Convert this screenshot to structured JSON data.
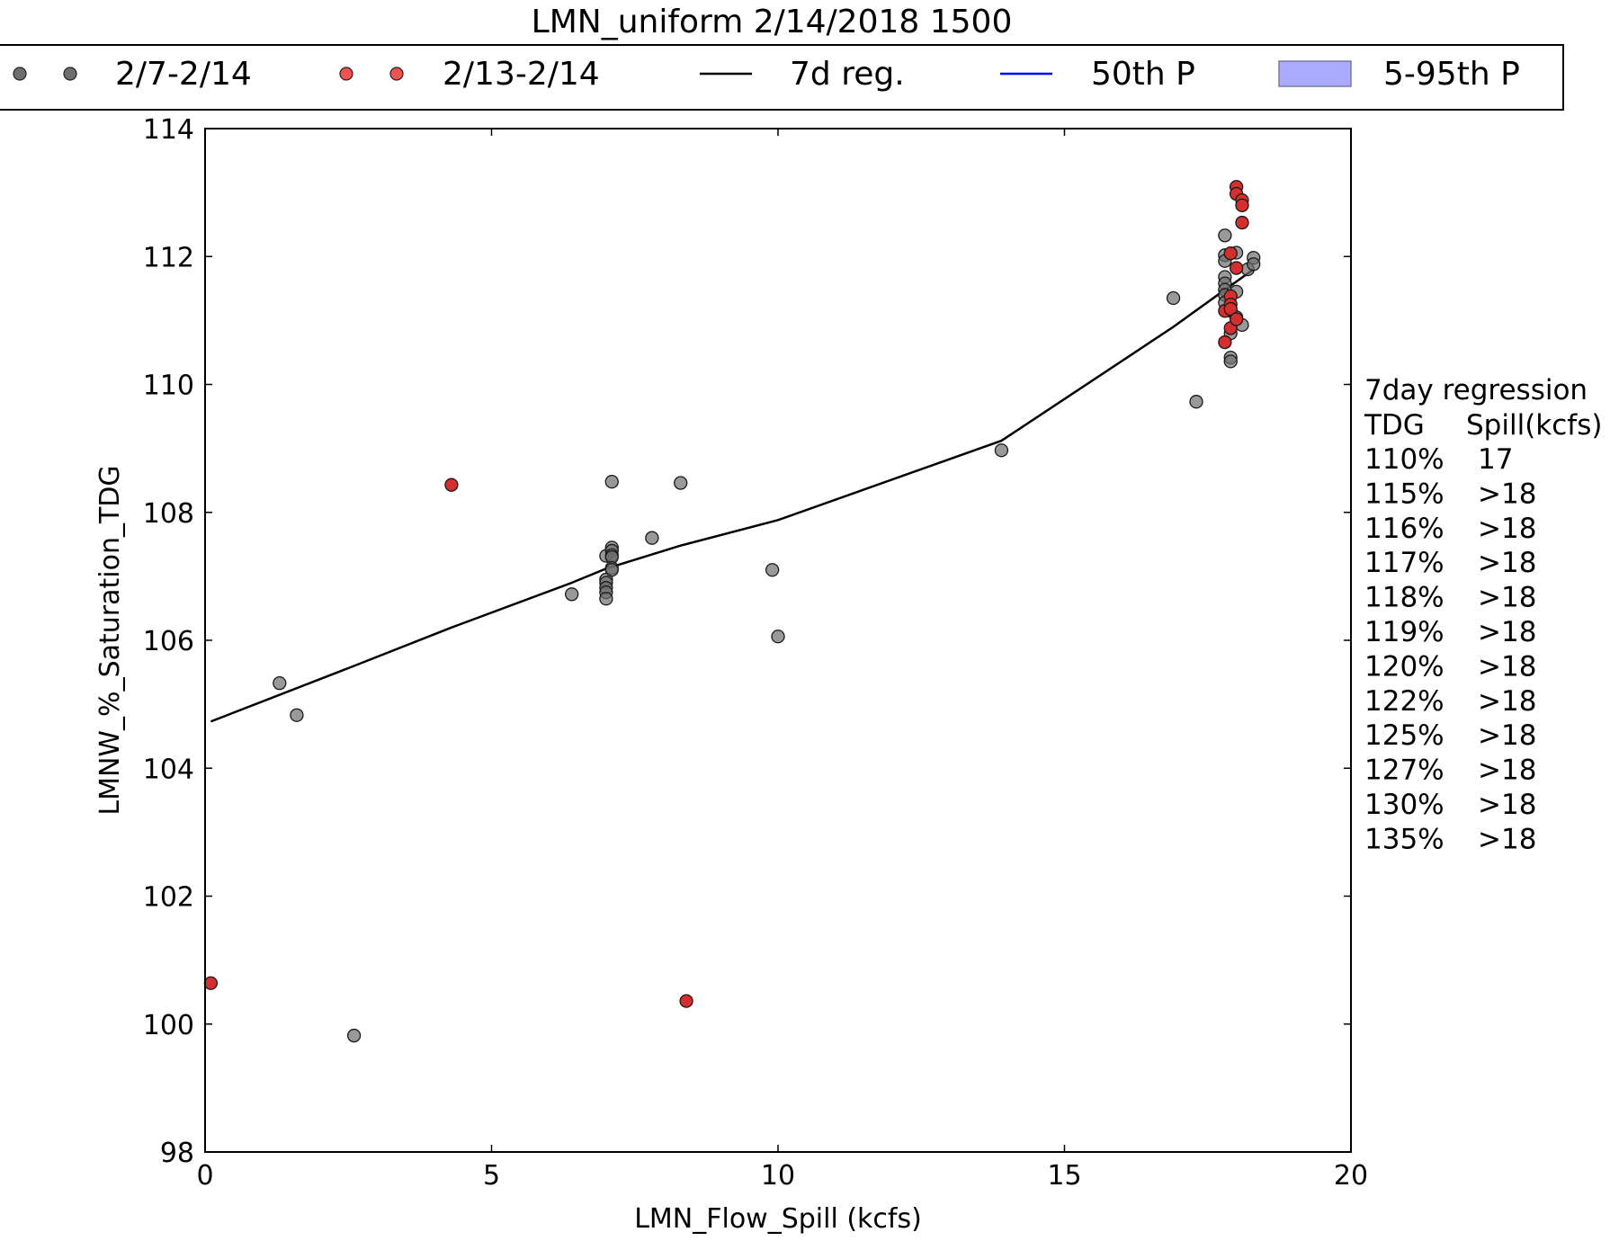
{
  "chart_data": {
    "type": "scatter",
    "title": "LMN_uniform 2/14/2018 1500",
    "xlabel": "LMN_Flow_Spill (kcfs)",
    "ylabel": "LMNW_%_Saturation_TDG",
    "xlim": [
      0,
      20
    ],
    "ylim": [
      98,
      114
    ],
    "xticks": [
      0,
      5,
      10,
      15,
      20
    ],
    "yticks": [
      98,
      100,
      102,
      104,
      106,
      108,
      110,
      112,
      114
    ],
    "grid": false,
    "legend_position": "top",
    "legend": [
      {
        "label": "2/7-2/14",
        "kind": "marker",
        "color": "#6e6e6e"
      },
      {
        "label": "2/13-2/14",
        "kind": "marker",
        "color": "#ef5350"
      },
      {
        "label": "7d reg.",
        "kind": "line",
        "color": "#000000"
      },
      {
        "label": "50th P",
        "kind": "line",
        "color": "#0000ff"
      },
      {
        "label": "5-95th P",
        "kind": "patch",
        "color": "#aaaaff"
      }
    ],
    "series": [
      {
        "name": "2/7-2/14",
        "color": "#6e6e6e",
        "points": [
          [
            1.3,
            105.33
          ],
          [
            1.6,
            104.83
          ],
          [
            2.6,
            99.82
          ],
          [
            6.4,
            106.72
          ],
          [
            7.0,
            107.32
          ],
          [
            7.0,
            106.95
          ],
          [
            7.0,
            106.9
          ],
          [
            7.0,
            106.82
          ],
          [
            7.0,
            106.75
          ],
          [
            7.0,
            106.65
          ],
          [
            7.1,
            108.48
          ],
          [
            7.1,
            107.45
          ],
          [
            7.1,
            107.4
          ],
          [
            7.1,
            107.33
          ],
          [
            7.1,
            107.3
          ],
          [
            7.1,
            107.13
          ],
          [
            7.1,
            107.1
          ],
          [
            7.8,
            107.6
          ],
          [
            8.3,
            108.46
          ],
          [
            9.9,
            107.1
          ],
          [
            10.0,
            106.06
          ],
          [
            13.9,
            108.97
          ],
          [
            16.9,
            111.35
          ],
          [
            17.3,
            109.73
          ],
          [
            17.8,
            112.33
          ],
          [
            17.8,
            112.02
          ],
          [
            17.8,
            111.93
          ],
          [
            17.8,
            111.68
          ],
          [
            17.8,
            111.58
          ],
          [
            17.8,
            111.48
          ],
          [
            17.8,
            111.4
          ],
          [
            17.8,
            111.28
          ],
          [
            17.9,
            111.15
          ],
          [
            17.9,
            110.8
          ],
          [
            17.9,
            110.42
          ],
          [
            17.9,
            110.36
          ],
          [
            18.0,
            112.06
          ],
          [
            18.0,
            111.45
          ],
          [
            18.0,
            111.05
          ],
          [
            18.1,
            110.93
          ],
          [
            18.2,
            111.8
          ],
          [
            18.3,
            111.98
          ],
          [
            18.3,
            111.88
          ]
        ]
      },
      {
        "name": "2/13-2/14",
        "color": "#d32f2f",
        "points": [
          [
            0.1,
            100.64
          ],
          [
            4.3,
            108.43
          ],
          [
            8.4,
            100.36
          ],
          [
            17.8,
            111.15
          ],
          [
            17.8,
            110.66
          ],
          [
            17.9,
            112.05
          ],
          [
            17.9,
            111.38
          ],
          [
            17.9,
            111.25
          ],
          [
            17.9,
            111.18
          ],
          [
            17.9,
            110.88
          ],
          [
            18.0,
            113.09
          ],
          [
            18.0,
            112.98
          ],
          [
            18.0,
            111.82
          ],
          [
            18.0,
            111.02
          ],
          [
            18.1,
            112.88
          ],
          [
            18.1,
            112.8
          ],
          [
            18.1,
            112.53
          ]
        ]
      }
    ],
    "regression_line": {
      "name": "7d reg.",
      "color": "#000000",
      "points": [
        [
          0.1,
          104.73
        ],
        [
          2.6,
          105.6
        ],
        [
          4.3,
          106.2
        ],
        [
          6.4,
          106.9
        ],
        [
          7.0,
          107.12
        ],
        [
          8.3,
          107.48
        ],
        [
          10.0,
          107.88
        ],
        [
          13.9,
          109.12
        ],
        [
          16.9,
          110.9
        ],
        [
          17.8,
          111.48
        ],
        [
          18.3,
          111.8
        ]
      ]
    },
    "annotation": {
      "heading": "7day regression",
      "col1": "TDG",
      "col2": "Spill(kcfs)",
      "rows": [
        [
          "110%",
          "17"
        ],
        [
          "115%",
          ">18"
        ],
        [
          "116%",
          ">18"
        ],
        [
          "117%",
          ">18"
        ],
        [
          "118%",
          ">18"
        ],
        [
          "119%",
          ">18"
        ],
        [
          "120%",
          ">18"
        ],
        [
          "122%",
          ">18"
        ],
        [
          "125%",
          ">18"
        ],
        [
          "127%",
          ">18"
        ],
        [
          "130%",
          ">18"
        ],
        [
          "135%",
          ">18"
        ]
      ]
    }
  }
}
